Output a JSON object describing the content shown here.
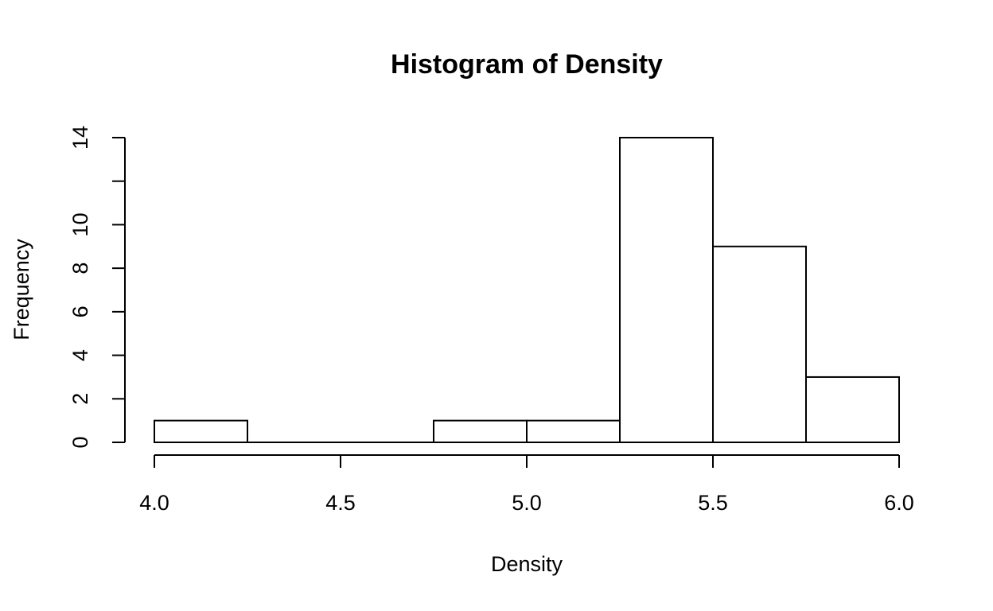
{
  "chart_data": {
    "type": "bar",
    "subtype": "histogram",
    "title": "Histogram of Density",
    "xlabel": "Density",
    "ylabel": "Frequency",
    "bins": [
      {
        "start": 4.0,
        "end": 4.25,
        "count": 1
      },
      {
        "start": 4.25,
        "end": 4.5,
        "count": 0
      },
      {
        "start": 4.5,
        "end": 4.75,
        "count": 0
      },
      {
        "start": 4.75,
        "end": 5.0,
        "count": 1
      },
      {
        "start": 5.0,
        "end": 5.25,
        "count": 1
      },
      {
        "start": 5.25,
        "end": 5.5,
        "count": 14
      },
      {
        "start": 5.5,
        "end": 5.75,
        "count": 9
      },
      {
        "start": 5.75,
        "end": 6.0,
        "count": 3
      }
    ],
    "xlim": [
      4.0,
      6.0
    ],
    "ylim": [
      0,
      14
    ],
    "x_ticks": [
      4.0,
      4.5,
      5.0,
      5.5,
      6.0
    ],
    "x_tick_labels": [
      "4.0",
      "4.5",
      "5.0",
      "5.5",
      "6.0"
    ],
    "y_ticks": [
      0,
      2,
      4,
      6,
      8,
      10,
      12,
      14
    ],
    "y_tick_labels": [
      "0",
      "2",
      "4",
      "6",
      "8",
      "10",
      "",
      "14"
    ],
    "grid": false,
    "legend": "none",
    "colors": {
      "bar_fill": "#ffffff",
      "bar_stroke": "#000000",
      "background": "#ffffff"
    }
  }
}
